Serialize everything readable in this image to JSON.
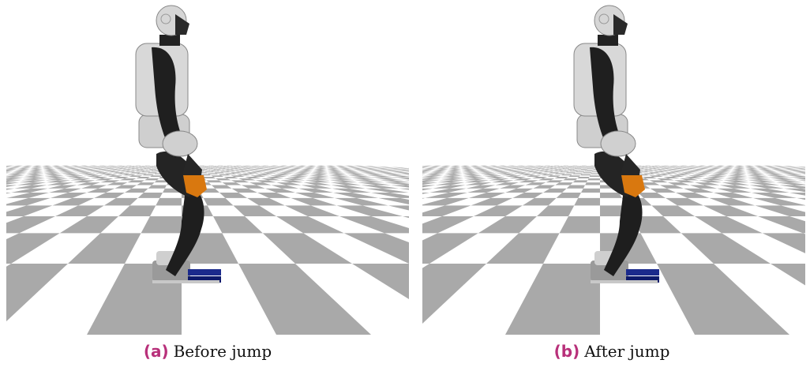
{
  "figures": [
    {
      "label": "(a)",
      "caption": "Before jump"
    },
    {
      "label": "(b)",
      "caption": "After jump"
    }
  ]
}
